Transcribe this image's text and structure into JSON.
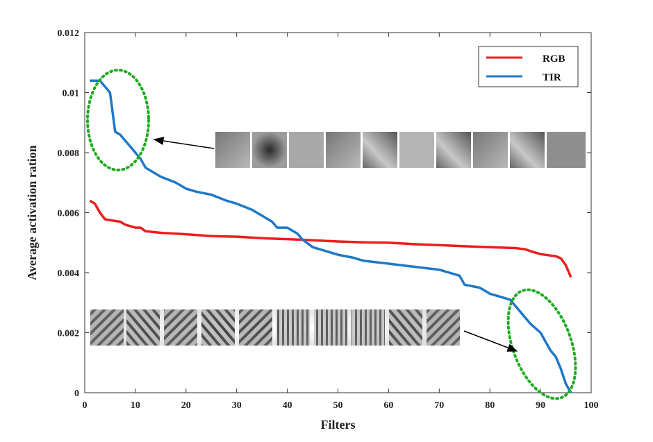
{
  "chart_data": {
    "type": "line",
    "xlabel": "Filters",
    "ylabel": "Average activation ration",
    "xlim": [
      0,
      100
    ],
    "ylim": [
      0,
      0.012
    ],
    "xticks": [
      "0",
      "10",
      "20",
      "30",
      "40",
      "50",
      "60",
      "70",
      "80",
      "90",
      "100"
    ],
    "yticks": [
      "0",
      "0.002",
      "0.004",
      "0.006",
      "0.008",
      "0.01",
      "0.012"
    ],
    "grid": false,
    "legend_position": "top-right",
    "series": [
      {
        "name": "RGB",
        "color": "#ee1c1c",
        "x": [
          1,
          2,
          3,
          4,
          5,
          7,
          8,
          10,
          11,
          12,
          15,
          20,
          25,
          30,
          35,
          40,
          45,
          50,
          55,
          60,
          65,
          70,
          75,
          80,
          85,
          87,
          88,
          90,
          92,
          93,
          94,
          95,
          96
        ],
        "y": [
          0.0064,
          0.0063,
          0.006,
          0.00578,
          0.00575,
          0.0057,
          0.0056,
          0.0055,
          0.0055,
          0.00538,
          0.00533,
          0.00528,
          0.00522,
          0.0052,
          0.00515,
          0.00512,
          0.00508,
          0.00504,
          0.00501,
          0.005,
          0.00495,
          0.00492,
          0.00488,
          0.00485,
          0.00482,
          0.00478,
          0.00472,
          0.00462,
          0.00457,
          0.00455,
          0.00448,
          0.00425,
          0.00385
        ]
      },
      {
        "name": "TIR",
        "color": "#1e78c8",
        "x": [
          1,
          3,
          5,
          6,
          7,
          8,
          9,
          10,
          11,
          12,
          15,
          18,
          20,
          22,
          25,
          28,
          30,
          33,
          35,
          37,
          38,
          40,
          42,
          43,
          45,
          48,
          50,
          53,
          55,
          60,
          65,
          70,
          72,
          74,
          75,
          78,
          80,
          82,
          84,
          86,
          87,
          88,
          90,
          91,
          92,
          93,
          94,
          95,
          96
        ],
        "y": [
          0.0104,
          0.0104,
          0.01,
          0.0087,
          0.0086,
          0.0084,
          0.0082,
          0.008,
          0.0078,
          0.0075,
          0.0072,
          0.007,
          0.0068,
          0.0067,
          0.0066,
          0.0064,
          0.0063,
          0.0061,
          0.0059,
          0.0057,
          0.0055,
          0.0055,
          0.0053,
          0.0051,
          0.00485,
          0.0047,
          0.0046,
          0.0045,
          0.0044,
          0.0043,
          0.0042,
          0.0041,
          0.004,
          0.0039,
          0.0036,
          0.0035,
          0.0033,
          0.0032,
          0.0031,
          0.0027,
          0.0025,
          0.0023,
          0.002,
          0.0017,
          0.0014,
          0.0012,
          0.0008,
          0.0003,
          0.0
        ]
      }
    ],
    "annotation_color": "#22aa22"
  }
}
